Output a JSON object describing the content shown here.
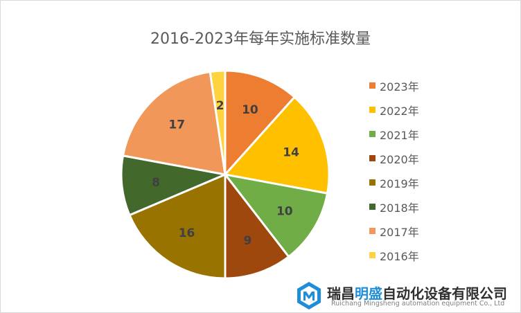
{
  "chart_data": {
    "type": "pie",
    "title": "2016-2023年每年实施标准数量",
    "categories": [
      "2023年",
      "2022年",
      "2021年",
      "2020年",
      "2019年",
      "2018年",
      "2017年",
      "2016年"
    ],
    "values": [
      10,
      14,
      10,
      9,
      16,
      8,
      17,
      2
    ],
    "colors": [
      "#ED7D31",
      "#FFC000",
      "#70AD47",
      "#9E480E",
      "#997300",
      "#43682B",
      "#F1975A",
      "#FFD23F"
    ],
    "legend_position": "right",
    "data_labels": true
  },
  "watermark": {
    "name_part1": "瑞昌",
    "name_accent": "明盛",
    "name_part2": "自动化设备有限公司",
    "subtitle": "Ruichang Mingsheng automation equipment Co., Ltd",
    "logo_color": "#1f8ed8"
  }
}
